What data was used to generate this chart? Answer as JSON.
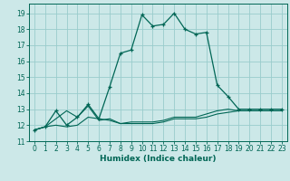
{
  "title": "",
  "xlabel": "Humidex (Indice chaleur)",
  "ylabel": "",
  "bg_color": "#cce8e8",
  "grid_color": "#99cccc",
  "line_color": "#006655",
  "xlim": [
    -0.5,
    23.5
  ],
  "ylim": [
    11,
    19.6
  ],
  "yticks": [
    11,
    12,
    13,
    14,
    15,
    16,
    17,
    18,
    19
  ],
  "xticks": [
    0,
    1,
    2,
    3,
    4,
    5,
    6,
    7,
    8,
    9,
    10,
    11,
    12,
    13,
    14,
    15,
    16,
    17,
    18,
    19,
    20,
    21,
    22,
    23
  ],
  "line1_x": [
    0,
    1,
    2,
    3,
    4,
    5,
    6,
    7,
    8,
    9,
    10,
    11,
    12,
    13,
    14,
    15,
    16,
    17,
    18,
    19,
    20,
    21,
    22,
    23
  ],
  "line1_y": [
    11.7,
    11.9,
    12.0,
    11.9,
    12.0,
    12.5,
    12.4,
    12.3,
    12.1,
    12.1,
    12.1,
    12.1,
    12.2,
    12.4,
    12.4,
    12.4,
    12.5,
    12.7,
    12.8,
    12.9,
    12.9,
    12.9,
    12.9,
    12.9
  ],
  "line2_x": [
    0,
    1,
    2,
    3,
    4,
    5,
    6,
    7,
    8,
    9,
    10,
    11,
    12,
    13,
    14,
    15,
    16,
    17,
    18,
    19,
    20,
    21,
    22,
    23
  ],
  "line2_y": [
    11.7,
    11.9,
    12.4,
    12.9,
    12.5,
    13.2,
    12.3,
    12.4,
    12.1,
    12.2,
    12.2,
    12.2,
    12.3,
    12.5,
    12.5,
    12.5,
    12.7,
    12.9,
    13.0,
    12.9,
    12.9,
    12.9,
    12.9,
    12.9
  ],
  "line3_x": [
    0,
    1,
    2,
    3,
    4,
    5,
    6,
    7,
    8,
    9,
    10,
    11,
    12,
    13,
    14,
    15,
    16,
    17,
    18,
    19,
    20,
    21,
    22,
    23
  ],
  "line3_y": [
    11.7,
    11.9,
    12.9,
    12.0,
    12.5,
    13.3,
    12.4,
    14.4,
    16.5,
    16.7,
    18.9,
    18.2,
    18.3,
    19.0,
    18.0,
    17.7,
    17.8,
    14.5,
    13.8,
    13.0,
    13.0,
    13.0,
    13.0,
    13.0
  ]
}
